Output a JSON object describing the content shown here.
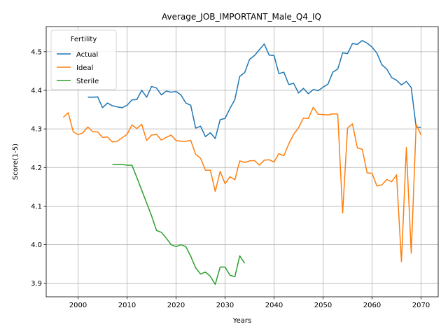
{
  "chart_data": {
    "type": "line",
    "title": "Average_JOB_IMPORTANT_Male_Q4_IQ",
    "xlabel": "Years",
    "ylabel": "Score(1-5)",
    "xlim": [
      1993.5,
      2073.5
    ],
    "ylim": [
      3.865,
      4.565
    ],
    "xticks": [
      2000,
      2010,
      2020,
      2030,
      2040,
      2050,
      2060,
      2070
    ],
    "yticks": [
      3.9,
      4.0,
      4.1,
      4.2,
      4.3,
      4.4,
      4.5
    ],
    "grid": true,
    "legend": {
      "title": "Fertility",
      "position": "upper left"
    },
    "series": [
      {
        "name": "Actual",
        "color": "#1f77b4",
        "x": [
          2002,
          2003,
          2004,
          2005,
          2006,
          2007,
          2008,
          2009,
          2010,
          2011,
          2012,
          2013,
          2014,
          2015,
          2016,
          2017,
          2018,
          2019,
          2020,
          2021,
          2022,
          2023,
          2024,
          2025,
          2026,
          2027,
          2028,
          2029,
          2030,
          2031,
          2032,
          2033,
          2034,
          2035,
          2036,
          2037,
          2038,
          2039,
          2040,
          2041,
          2042,
          2043,
          2044,
          2045,
          2046,
          2047,
          2048,
          2049,
          2050,
          2051,
          2052,
          2053,
          2054,
          2055,
          2056,
          2057,
          2058,
          2059,
          2060,
          2061,
          2062,
          2063,
          2064,
          2065,
          2066,
          2067,
          2068,
          2069,
          2070
        ],
        "y": [
          4.382,
          4.382,
          4.383,
          4.355,
          4.367,
          4.36,
          4.357,
          4.355,
          4.361,
          4.375,
          4.376,
          4.4,
          4.382,
          4.41,
          4.406,
          4.388,
          4.398,
          4.395,
          4.397,
          4.388,
          4.367,
          4.361,
          4.302,
          4.307,
          4.28,
          4.29,
          4.275,
          4.324,
          4.327,
          4.353,
          4.376,
          4.436,
          4.446,
          4.48,
          4.49,
          4.505,
          4.52,
          4.491,
          4.49,
          4.443,
          4.447,
          4.415,
          4.418,
          4.393,
          4.405,
          4.391,
          4.402,
          4.399,
          4.408,
          4.416,
          4.447,
          4.455,
          4.497,
          4.495,
          4.521,
          4.519,
          4.529,
          4.522,
          4.512,
          4.496,
          4.466,
          4.455,
          4.433,
          4.426,
          4.414,
          4.423,
          4.407,
          4.304,
          4.304
        ]
      },
      {
        "name": "Ideal",
        "color": "#ff7f0e",
        "x": [
          1997,
          1998,
          1999,
          2000,
          2001,
          2002,
          2003,
          2004,
          2005,
          2006,
          2007,
          2008,
          2009,
          2010,
          2011,
          2012,
          2013,
          2014,
          2015,
          2016,
          2017,
          2018,
          2019,
          2020,
          2021,
          2022,
          2023,
          2024,
          2025,
          2026,
          2027,
          2028,
          2029,
          2030,
          2031,
          2032,
          2033,
          2034,
          2035,
          2036,
          2037,
          2038,
          2039,
          2040,
          2041,
          2042,
          2043,
          2044,
          2045,
          2046,
          2047,
          2048,
          2049,
          2050,
          2051,
          2052,
          2053,
          2054,
          2055,
          2056,
          2057,
          2058,
          2059,
          2060,
          2061,
          2062,
          2063,
          2064,
          2065,
          2066,
          2067,
          2068,
          2069,
          2070
        ],
        "y": [
          4.33,
          4.342,
          4.293,
          4.285,
          4.29,
          4.305,
          4.293,
          4.292,
          4.278,
          4.279,
          4.266,
          4.268,
          4.277,
          4.286,
          4.31,
          4.301,
          4.312,
          4.27,
          4.284,
          4.286,
          4.271,
          4.278,
          4.284,
          4.27,
          4.268,
          4.268,
          4.27,
          4.234,
          4.224,
          4.193,
          4.193,
          4.138,
          4.19,
          4.158,
          4.176,
          4.168,
          4.217,
          4.213,
          4.217,
          4.218,
          4.206,
          4.219,
          4.22,
          4.214,
          4.236,
          4.23,
          4.261,
          4.286,
          4.303,
          4.328,
          4.327,
          4.356,
          4.338,
          4.337,
          4.336,
          4.339,
          4.338,
          4.082,
          4.302,
          4.313,
          4.251,
          4.247,
          4.186,
          4.185,
          4.152,
          4.155,
          4.169,
          4.163,
          4.181,
          3.956,
          4.252,
          3.978,
          4.312,
          4.284
        ]
      },
      {
        "name": "Sterile",
        "color": "#2ca02c",
        "x": [
          2007,
          2008,
          2009,
          2010,
          2011,
          2012,
          2013,
          2014,
          2015,
          2016,
          2017,
          2018,
          2019,
          2020,
          2021,
          2022,
          2023,
          2024,
          2025,
          2026,
          2027,
          2028,
          2029,
          2030,
          2031,
          2032,
          2033,
          2034
        ],
        "y": [
          4.208,
          4.208,
          4.208,
          4.206,
          4.206,
          4.174,
          4.141,
          4.108,
          4.075,
          4.037,
          4.032,
          4.017,
          4.0,
          3.995,
          4.0,
          3.995,
          3.97,
          3.94,
          3.924,
          3.929,
          3.918,
          3.897,
          3.942,
          3.942,
          3.921,
          3.917,
          3.971,
          3.952
        ]
      }
    ]
  }
}
